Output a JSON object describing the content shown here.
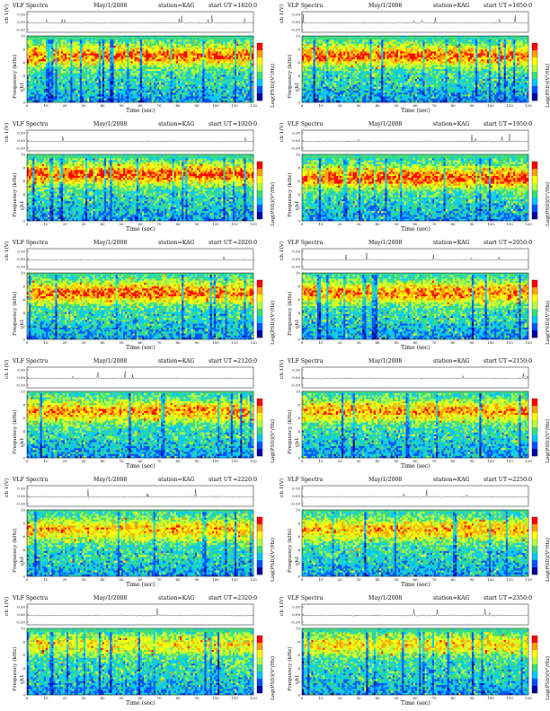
{
  "page": {
    "background": "#ffffff"
  },
  "panels": [
    {
      "title": "VLF Spectra",
      "date": "May/1/2008",
      "station": "station=KAG",
      "ut_label": "start  UT",
      "ut_value": "=1820:0",
      "ch_label": "ch 1(V)",
      "freq_label": "Frequency  (kHz)",
      "ch_side": "ch1",
      "cb_label": "Log(PSD)(V²/Hz)",
      "x_label": "Time  (sec)"
    },
    {
      "title": "VLF Spectra",
      "date": "May/1/2008",
      "station": "station=KAG",
      "ut_label": "start  UT",
      "ut_value": "=1850:0",
      "ch_label": "ch 1(V)",
      "freq_label": "Frequency  (kHz)",
      "ch_side": "ch1",
      "cb_label": "Log(PSD)(V²/Hz)",
      "x_label": "Time  (sec)"
    },
    {
      "title": "VLF Spectra",
      "date": "May/1/2008",
      "station": "station=KAG",
      "ut_label": "start  UT",
      "ut_value": "=1920:0",
      "ch_label": "ch 1(V)",
      "freq_label": "Frequency  (kHz)",
      "ch_side": "ch1",
      "cb_label": "Log(PSD)(V²/Hz)",
      "x_label": "Time  (sec)"
    },
    {
      "title": "VLF Spectra",
      "date": "May/1/2008",
      "station": "station=KAG",
      "ut_label": "start  UT",
      "ut_value": "=1950:0",
      "ch_label": "ch 1(V)",
      "freq_label": "Frequency  (kHz)",
      "ch_side": "ch1",
      "cb_label": "Log(PSD)(V²/Hz)",
      "x_label": "Time  (sec)"
    },
    {
      "title": "VLF Spectra",
      "date": "May/1/2008",
      "station": "station=KAG",
      "ut_label": "start  UT",
      "ut_value": "=2020:0",
      "ch_label": "ch 1(V)",
      "freq_label": "Frequency  (kHz)",
      "ch_side": "ch1",
      "cb_label": "Log(PSD)(V²/Hz)",
      "x_label": "Time  (sec)"
    },
    {
      "title": "VLF Spectra",
      "date": "May/1/2008",
      "station": "station=KAG",
      "ut_label": "start  UT",
      "ut_value": "=2050:0",
      "ch_label": "ch 1(V)",
      "freq_label": "Frequency  (kHz)",
      "ch_side": "ch1",
      "cb_label": "Log(PSD)(V²/Hz)",
      "x_label": "Time  (sec)"
    },
    {
      "title": "VLF Spectra",
      "date": "May/1/2008",
      "station": "station=KAG",
      "ut_label": "start  UT",
      "ut_value": "=2120:0",
      "ch_label": "ch 1(V)",
      "freq_label": "Frequency  (kHz)",
      "ch_side": "ch1",
      "cb_label": "Log(PSD)(V²/Hz)",
      "x_label": "Time  (sec)"
    },
    {
      "title": "VLF Spectra",
      "date": "May/1/2008",
      "station": "station=KAG",
      "ut_label": "start  UT",
      "ut_value": "=2150:0",
      "ch_label": "ch 1(V)",
      "freq_label": "Frequency  (kHz)",
      "ch_side": "ch1",
      "cb_label": "Log(PSD)(V²/Hz)",
      "x_label": "Time  (sec)"
    },
    {
      "title": "VLF Spectra",
      "date": "May/1/2008",
      "station": "station=KAG",
      "ut_label": "start  UT",
      "ut_value": "=2220:0",
      "ch_label": "ch 1(V)",
      "freq_label": "Frequency  (kHz)",
      "ch_side": "ch1",
      "cb_label": "Log(PSD)(V²/Hz)",
      "x_label": "Time  (sec)"
    },
    {
      "title": "VLF Spectra",
      "date": "May/1/2008",
      "station": "station=KAG",
      "ut_label": "start  UT",
      "ut_value": "=2250:0",
      "ch_label": "ch 1(V)",
      "freq_label": "Frequency  (kHz)",
      "ch_side": "ch1",
      "cb_label": "Log(PSD)(V²/Hz)",
      "x_label": "Time  (sec)"
    },
    {
      "title": "VLF Spectra",
      "date": "May/1/2008",
      "station": "station=KAG",
      "ut_label": "start  UT",
      "ut_value": "=2320:0",
      "ch_label": "ch 1(V)",
      "freq_label": "Frequency  (kHz)",
      "ch_side": "ch1",
      "cb_label": "Log(PSD)(V²/Hz)",
      "x_label": "Time  (sec)"
    },
    {
      "title": "VLF Spectra",
      "date": "May/1/2008",
      "station": "station=KAG",
      "ut_label": "start  UT",
      "ut_value": "=2350:0",
      "ch_label": "ch 1(V)",
      "freq_label": "Frequency  (kHz)",
      "ch_side": "ch1",
      "cb_label": "Log(PSD)(V²/Hz)",
      "x_label": "Time  (sec)"
    }
  ],
  "chart_data": {
    "type": "heatmap",
    "panel_count": 12,
    "layout": "6 rows x 2 columns",
    "x_axis": {
      "label": "Time  (sec)",
      "range": [
        0,
        120
      ],
      "ticks": [
        "0",
        "10",
        "20",
        "30",
        "40",
        "50",
        "60",
        "70",
        "80",
        "90",
        "100",
        "110",
        "120"
      ]
    },
    "freq_axis": {
      "label": "Frequency  (kHz)",
      "range": [
        0,
        10
      ],
      "ticks": [
        "0",
        "2",
        "4",
        "6",
        "8",
        "10"
      ]
    },
    "waveform_axis": {
      "label": "ch 1(V)",
      "ticks": [
        "0.30",
        "0.00",
        "-0.30"
      ]
    },
    "colorbar": {
      "label": "Log(PSD)(V²/Hz)",
      "colors": [
        "#0000a0",
        "#0050ff",
        "#00c8ff",
        "#3cdc78",
        "#b4ff3c",
        "#ffff00",
        "#ffa000",
        "#ff0000"
      ]
    },
    "panel_intensity_profiles": [
      {
        "start_ut": "1820:0",
        "band_center_khz": 7,
        "band_strength": 0.85,
        "top_cutoff_khz": 9.5
      },
      {
        "start_ut": "1850:0",
        "band_center_khz": 7,
        "band_strength": 0.85,
        "top_cutoff_khz": 9.5
      },
      {
        "start_ut": "1920:0",
        "band_center_khz": 7,
        "band_strength": 0.9,
        "top_cutoff_khz": 9.5
      },
      {
        "start_ut": "1950:0",
        "band_center_khz": 6.5,
        "band_strength": 0.9,
        "top_cutoff_khz": 9.5
      },
      {
        "start_ut": "2020:0",
        "band_center_khz": 7,
        "band_strength": 0.85,
        "top_cutoff_khz": 9.8
      },
      {
        "start_ut": "2050:0",
        "band_center_khz": 7,
        "band_strength": 0.8,
        "top_cutoff_khz": 9.8
      },
      {
        "start_ut": "2120:0",
        "band_center_khz": 7,
        "band_strength": 0.75,
        "top_cutoff_khz": 9.7
      },
      {
        "start_ut": "2150:0",
        "band_center_khz": 7,
        "band_strength": 0.75,
        "top_cutoff_khz": 9.7
      },
      {
        "start_ut": "2220:0",
        "band_center_khz": 7,
        "band_strength": 0.7,
        "top_cutoff_khz": 9.7
      },
      {
        "start_ut": "2250:0",
        "band_center_khz": 7,
        "band_strength": 0.7,
        "top_cutoff_khz": 9.7
      },
      {
        "start_ut": "2320:0",
        "band_center_khz": 7.5,
        "band_strength": 0.55,
        "top_cutoff_khz": 9.5
      },
      {
        "start_ut": "2350:0",
        "band_center_khz": 7.5,
        "band_strength": 0.6,
        "top_cutoff_khz": 9.5
      }
    ]
  }
}
